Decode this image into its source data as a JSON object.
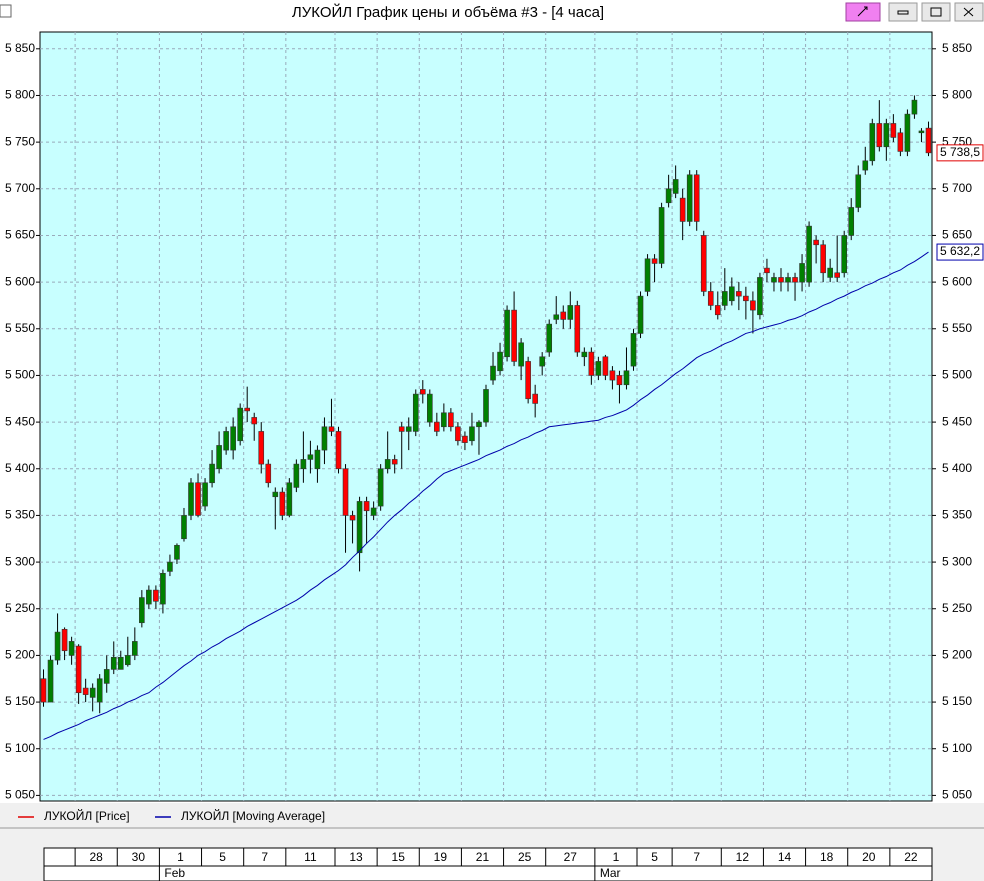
{
  "chart_data": {
    "type": "candlestick",
    "title": "ЛУКОЙЛ График цены и объёма #3 - [4 часа]",
    "categories": [
      null,
      null,
      null,
      null,
      null,
      "28",
      null,
      null,
      null,
      null,
      null,
      "30",
      null,
      null,
      null,
      null,
      null,
      "1",
      null,
      null,
      null,
      null,
      null,
      "5",
      null,
      null,
      null,
      null,
      null,
      "7",
      null,
      null,
      null,
      null,
      null,
      "11",
      null,
      null,
      null,
      null,
      null,
      null,
      "13",
      null,
      null,
      null,
      null,
      null,
      "15",
      null,
      null,
      null,
      null,
      null,
      "19",
      null,
      null,
      null,
      null,
      null,
      "21",
      null,
      null,
      null,
      null,
      null,
      "25",
      null,
      null,
      null,
      null,
      null,
      "27",
      null,
      null,
      null,
      null,
      null,
      null,
      "1",
      null,
      null,
      null,
      null,
      null,
      "5",
      null,
      null,
      null,
      null,
      "7",
      null,
      null,
      null,
      null,
      null,
      null,
      "12",
      null,
      null,
      null,
      null,
      null,
      "14",
      null,
      null,
      null,
      null,
      null,
      "18",
      null,
      null,
      null,
      null,
      null,
      "20",
      null,
      null,
      null,
      null,
      null,
      "22",
      null,
      null,
      null,
      null,
      null
    ],
    "month_categories": [
      null,
      null,
      null,
      null,
      null,
      null,
      null,
      null,
      null,
      null,
      null,
      null,
      null,
      null,
      null,
      null,
      null,
      "Feb",
      null,
      null,
      null,
      null,
      null,
      null,
      null,
      null,
      null,
      null,
      null,
      null,
      null,
      null,
      null,
      null,
      null,
      null,
      null,
      null,
      null,
      null,
      null,
      null,
      null,
      null,
      null,
      null,
      null,
      null,
      null,
      null,
      null,
      null,
      null,
      null,
      null,
      null,
      null,
      null,
      null,
      null,
      null,
      null,
      null,
      null,
      null,
      null,
      null,
      null,
      null,
      null,
      null,
      null,
      null,
      null,
      null,
      null,
      null,
      null,
      null,
      "Mar",
      null,
      null,
      null,
      null,
      null,
      null,
      null,
      null,
      null,
      null,
      null,
      null,
      null,
      null,
      null,
      null,
      null,
      null,
      null,
      null,
      null,
      null,
      null,
      null,
      null,
      null,
      null,
      null,
      null,
      null,
      null,
      null,
      null,
      null,
      null,
      null,
      null,
      null,
      null,
      null,
      null,
      null,
      null,
      null,
      null,
      null,
      null
    ],
    "series": [
      {
        "name": "ЛУКОЙЛ [Price]",
        "color": "#e00000",
        "up_color": "#008000",
        "down_color": "#ff0000",
        "last_label": "5 738,5",
        "open": [
          5175,
          5150,
          5195,
          5228,
          5200,
          5210,
          5165,
          5155,
          5150,
          5170,
          5185,
          5185,
          5190,
          5200,
          5235,
          5255,
          5270,
          5255,
          5290,
          5303,
          5325,
          5350,
          5385,
          5360,
          5385,
          5400,
          5420,
          5420,
          5430,
          5465,
          5455,
          5440,
          5405,
          5370,
          5375,
          5350,
          5380,
          5400,
          5410,
          5400,
          5420,
          5445,
          5440,
          5400,
          5350,
          5310,
          5365,
          5350,
          5360,
          5400,
          5410,
          5445,
          5440,
          5440,
          5485,
          5450,
          5450,
          5445,
          5460,
          5445,
          5435,
          5430,
          5445,
          5450,
          5495,
          5505,
          5520,
          5570,
          5510,
          5515,
          5480,
          5510,
          5525,
          5560,
          5568,
          5560,
          5575,
          5520,
          5525,
          5500,
          5520,
          5505,
          5500,
          5490,
          5510,
          5545,
          5590,
          5625,
          5620,
          5685,
          5695,
          5690,
          5665,
          5715,
          5650,
          5590,
          5575,
          5575,
          5580,
          5590,
          5585,
          5580,
          5565,
          5615,
          5600,
          5605,
          5600,
          5605,
          5600,
          5600,
          5645,
          5640,
          5605,
          5610,
          5610,
          5650,
          5680,
          5720,
          5730,
          5770,
          5745,
          5770,
          5760,
          5740,
          5780,
          5760,
          5765
        ],
        "high": [
          5185,
          5200,
          5245,
          5230,
          5220,
          5212,
          5175,
          5170,
          5180,
          5200,
          5215,
          5205,
          5220,
          5230,
          5270,
          5275,
          5275,
          5292,
          5308,
          5320,
          5358,
          5390,
          5395,
          5390,
          5420,
          5440,
          5445,
          5455,
          5470,
          5488,
          5460,
          5450,
          5410,
          5380,
          5380,
          5390,
          5410,
          5440,
          5430,
          5425,
          5455,
          5475,
          5445,
          5405,
          5355,
          5370,
          5370,
          5365,
          5405,
          5440,
          5415,
          5450,
          5455,
          5485,
          5495,
          5485,
          5460,
          5470,
          5465,
          5450,
          5440,
          5460,
          5452,
          5490,
          5525,
          5535,
          5575,
          5590,
          5540,
          5520,
          5490,
          5525,
          5560,
          5585,
          5575,
          5590,
          5580,
          5530,
          5530,
          5520,
          5522,
          5510,
          5505,
          5530,
          5550,
          5590,
          5630,
          5630,
          5685,
          5715,
          5725,
          5700,
          5720,
          5720,
          5655,
          5600,
          5590,
          5615,
          5605,
          5600,
          5595,
          5590,
          5610,
          5625,
          5610,
          5615,
          5610,
          5610,
          5630,
          5665,
          5650,
          5645,
          5625,
          5650,
          5655,
          5690,
          5725,
          5745,
          5775,
          5795,
          5775,
          5780,
          5765,
          5785,
          5800,
          5765,
          5772
        ],
        "low": [
          5145,
          5150,
          5190,
          5195,
          5190,
          5148,
          5150,
          5140,
          5138,
          5160,
          5180,
          5185,
          5188,
          5195,
          5230,
          5250,
          5250,
          5245,
          5285,
          5298,
          5322,
          5345,
          5348,
          5355,
          5380,
          5395,
          5415,
          5410,
          5425,
          5450,
          5430,
          5395,
          5380,
          5335,
          5345,
          5348,
          5375,
          5385,
          5395,
          5385,
          5405,
          5435,
          5395,
          5310,
          5320,
          5290,
          5320,
          5345,
          5355,
          5395,
          5395,
          5400,
          5420,
          5435,
          5470,
          5445,
          5435,
          5440,
          5440,
          5425,
          5420,
          5425,
          5415,
          5445,
          5490,
          5500,
          5515,
          5510,
          5495,
          5470,
          5455,
          5500,
          5520,
          5555,
          5550,
          5550,
          5520,
          5510,
          5490,
          5495,
          5495,
          5485,
          5470,
          5485,
          5505,
          5540,
          5585,
          5600,
          5615,
          5680,
          5690,
          5645,
          5660,
          5655,
          5585,
          5570,
          5560,
          5570,
          5575,
          5570,
          5560,
          5545,
          5560,
          5600,
          5590,
          5590,
          5590,
          5580,
          5590,
          5595,
          5620,
          5600,
          5600,
          5600,
          5605,
          5645,
          5675,
          5715,
          5725,
          5740,
          5730,
          5750,
          5735,
          5735,
          5775,
          5750,
          5735
        ],
        "close": [
          5150,
          5195,
          5225,
          5205,
          5215,
          5160,
          5158,
          5165,
          5175,
          5185,
          5198,
          5198,
          5200,
          5215,
          5262,
          5270,
          5258,
          5288,
          5300,
          5318,
          5350,
          5385,
          5350,
          5385,
          5405,
          5425,
          5440,
          5445,
          5465,
          5462,
          5448,
          5405,
          5385,
          5375,
          5350,
          5385,
          5405,
          5410,
          5415,
          5420,
          5445,
          5440,
          5400,
          5350,
          5345,
          5365,
          5355,
          5358,
          5400,
          5410,
          5405,
          5440,
          5445,
          5480,
          5480,
          5480,
          5440,
          5460,
          5445,
          5430,
          5428,
          5445,
          5450,
          5485,
          5510,
          5525,
          5570,
          5515,
          5535,
          5475,
          5470,
          5520,
          5555,
          5565,
          5560,
          5575,
          5525,
          5525,
          5500,
          5515,
          5500,
          5495,
          5490,
          5505,
          5545,
          5585,
          5625,
          5620,
          5680,
          5700,
          5710,
          5665,
          5715,
          5665,
          5590,
          5575,
          5565,
          5590,
          5595,
          5585,
          5580,
          5570,
          5605,
          5610,
          5605,
          5600,
          5605,
          5600,
          5620,
          5660,
          5640,
          5610,
          5615,
          5605,
          5650,
          5680,
          5715,
          5730,
          5770,
          5745,
          5770,
          5755,
          5740,
          5780,
          5795,
          5762,
          5738.5
        ]
      },
      {
        "name": "ЛУКОЙЛ [Moving Average]",
        "color": "#0000aa",
        "last_label": "5 632,2",
        "values": [
          5110,
          5113,
          5117,
          5120,
          5123,
          5126,
          5130,
          5133,
          5136,
          5139,
          5143,
          5146,
          5150,
          5153,
          5157,
          5160,
          5166,
          5171,
          5177,
          5183,
          5189,
          5194,
          5200,
          5204,
          5209,
          5213,
          5218,
          5222,
          5226,
          5231,
          5235,
          5239,
          5243,
          5247,
          5251,
          5255,
          5259,
          5264,
          5270,
          5275,
          5281,
          5286,
          5291,
          5297,
          5305,
          5312,
          5320,
          5327,
          5335,
          5343,
          5350,
          5356,
          5363,
          5369,
          5376,
          5382,
          5389,
          5395,
          5398,
          5401,
          5404,
          5407,
          5410,
          5414,
          5417,
          5420,
          5424,
          5427,
          5431,
          5434,
          5438,
          5441,
          5445,
          5446,
          5447,
          5448,
          5449,
          5450,
          5451,
          5452,
          5455,
          5457,
          5460,
          5463,
          5468,
          5474,
          5479,
          5485,
          5490,
          5496,
          5502,
          5507,
          5513,
          5519,
          5523,
          5526,
          5530,
          5534,
          5537,
          5541,
          5545,
          5547,
          5550,
          5552,
          5554,
          5556,
          5559,
          5561,
          5564,
          5568,
          5571,
          5575,
          5578,
          5582,
          5585,
          5589,
          5592,
          5596,
          5599,
          5603,
          5606,
          5610,
          5613,
          5618,
          5622,
          5627,
          5632.2
        ]
      }
    ],
    "ylim": [
      5044,
      5868
    ],
    "yticks": [
      {
        "value": 5050,
        "label": "5 050"
      },
      {
        "value": 5100,
        "label": "5 100"
      },
      {
        "value": 5150,
        "label": "5 150"
      },
      {
        "value": 5200,
        "label": "5 200"
      },
      {
        "value": 5250,
        "label": "5 250"
      },
      {
        "value": 5300,
        "label": "5 300"
      },
      {
        "value": 5350,
        "label": "5 350"
      },
      {
        "value": 5400,
        "label": "5 400"
      },
      {
        "value": 5450,
        "label": "5 450"
      },
      {
        "value": 5500,
        "label": "5 500"
      },
      {
        "value": 5550,
        "label": "5 550"
      },
      {
        "value": 5600,
        "label": "5 600"
      },
      {
        "value": 5650,
        "label": "5 650"
      },
      {
        "value": 5700,
        "label": "5 700"
      },
      {
        "value": 5750,
        "label": "5 750"
      },
      {
        "value": 5800,
        "label": "5 800"
      },
      {
        "value": 5850,
        "label": "5 850"
      }
    ],
    "grid": true
  }
}
